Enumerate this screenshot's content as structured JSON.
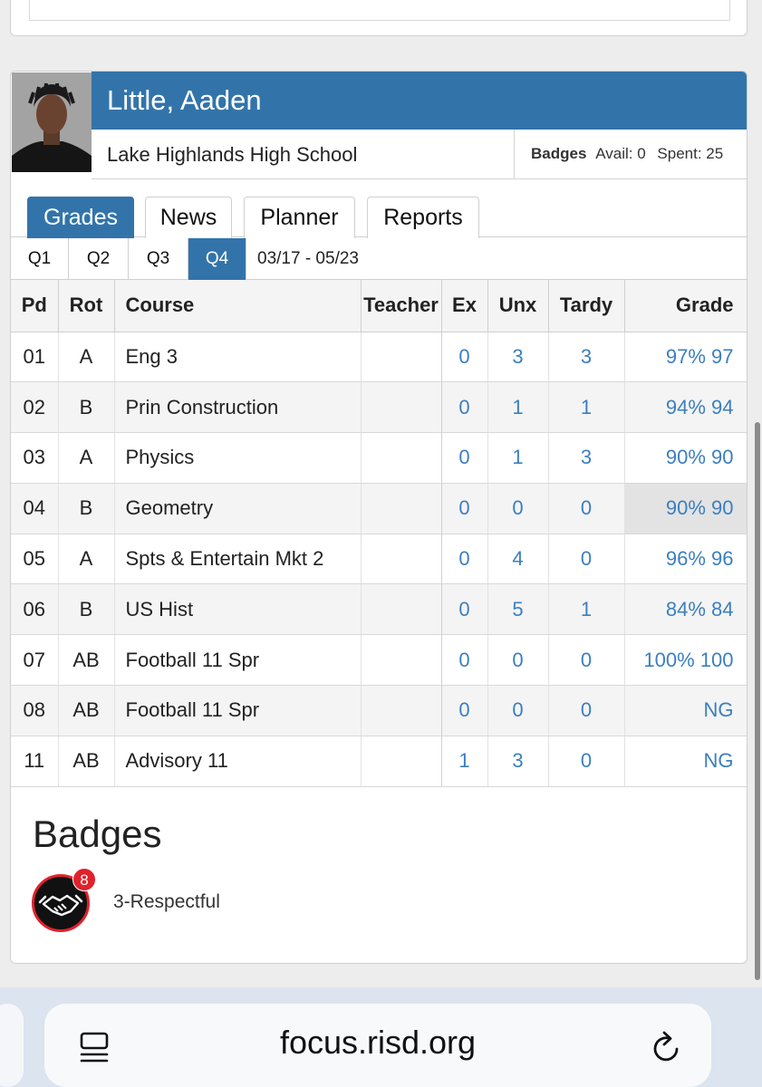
{
  "student": {
    "name": "Little, Aaden",
    "school": "Lake Highlands High School"
  },
  "badges_summary": {
    "label": "Badges",
    "avail": "Avail: 0",
    "spent": "Spent: 25"
  },
  "tabs": [
    {
      "label": "Grades",
      "active": true
    },
    {
      "label": "News",
      "active": false
    },
    {
      "label": "Planner",
      "active": false
    },
    {
      "label": "Reports",
      "active": false
    }
  ],
  "quarters": [
    {
      "label": "Q1",
      "active": false
    },
    {
      "label": "Q2",
      "active": false
    },
    {
      "label": "Q3",
      "active": false
    },
    {
      "label": "Q4",
      "active": true
    }
  ],
  "date_range": "03/17 - 05/23",
  "table": {
    "headers": {
      "pd": "Pd",
      "rot": "Rot",
      "course": "Course",
      "teacher": "Teacher",
      "ex": "Ex",
      "unx": "Unx",
      "tardy": "Tardy",
      "grade": "Grade"
    },
    "rows": [
      {
        "pd": "01",
        "rot": "A",
        "course": "Eng 3",
        "teacher": "",
        "ex": "0",
        "unx": "3",
        "tardy": "3",
        "grade": "97% 97"
      },
      {
        "pd": "02",
        "rot": "B",
        "course": "Prin Construction",
        "teacher": "",
        "ex": "0",
        "unx": "1",
        "tardy": "1",
        "grade": "94% 94"
      },
      {
        "pd": "03",
        "rot": "A",
        "course": "Physics",
        "teacher": "",
        "ex": "0",
        "unx": "1",
        "tardy": "3",
        "grade": "90% 90"
      },
      {
        "pd": "04",
        "rot": "B",
        "course": "Geometry",
        "teacher": "",
        "ex": "0",
        "unx": "0",
        "tardy": "0",
        "grade": "90% 90"
      },
      {
        "pd": "05",
        "rot": "A",
        "course": "Spts & Entertain Mkt 2",
        "teacher": "",
        "ex": "0",
        "unx": "4",
        "tardy": "0",
        "grade": "96% 96"
      },
      {
        "pd": "06",
        "rot": "B",
        "course": "US Hist",
        "teacher": "",
        "ex": "0",
        "unx": "5",
        "tardy": "1",
        "grade": "84% 84"
      },
      {
        "pd": "07",
        "rot": "AB",
        "course": "Football 11 Spr",
        "teacher": "",
        "ex": "0",
        "unx": "0",
        "tardy": "0",
        "grade": "100% 100"
      },
      {
        "pd": "08",
        "rot": "AB",
        "course": "Football 11 Spr",
        "teacher": "",
        "ex": "0",
        "unx": "0",
        "tardy": "0",
        "grade": "NG"
      },
      {
        "pd": "11",
        "rot": "AB",
        "course": "Advisory 11",
        "teacher": "",
        "ex": "1",
        "unx": "3",
        "tardy": "0",
        "grade": "NG"
      }
    ]
  },
  "badges_section": {
    "title": "Badges",
    "items": [
      {
        "count": "8",
        "label": "3-Respectful",
        "icon": "handshake-icon"
      }
    ]
  },
  "browser": {
    "url": "focus.risd.org"
  },
  "colors": {
    "accent": "#3274aa",
    "link": "#3b7fc0",
    "badge_red": "#e0222c"
  }
}
